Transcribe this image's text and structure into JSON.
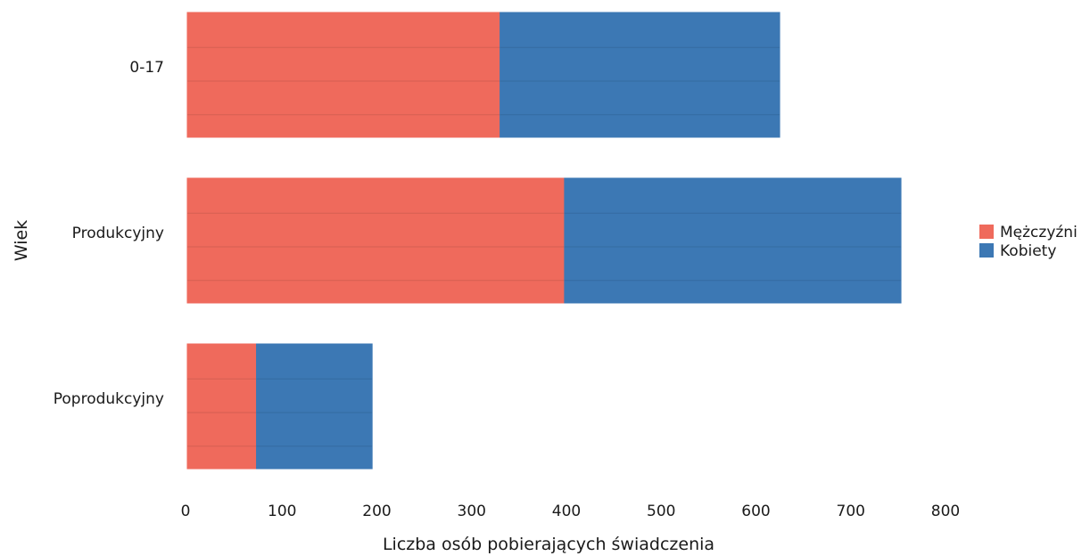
{
  "chart_data": {
    "type": "bar",
    "orientation": "horizontal",
    "stacked": true,
    "categories": [
      "0-17",
      "Produkcyjny",
      "Poprodukcyjny"
    ],
    "series": [
      {
        "name": "Mężczyźni",
        "color": "#ef6a5c",
        "values": [
          330,
          398,
          73
        ]
      },
      {
        "name": "Kobiety",
        "color": "#3c78b4",
        "values": [
          295,
          355,
          122
        ]
      }
    ],
    "xlabel": "Liczba osób pobierających świadczenia",
    "ylabel": "Wiek",
    "xlim": [
      0,
      800
    ],
    "xticks": [
      "0",
      "100",
      "200",
      "300",
      "400",
      "500",
      "600",
      "700",
      "800"
    ],
    "grid": false,
    "legend_position": "right"
  }
}
